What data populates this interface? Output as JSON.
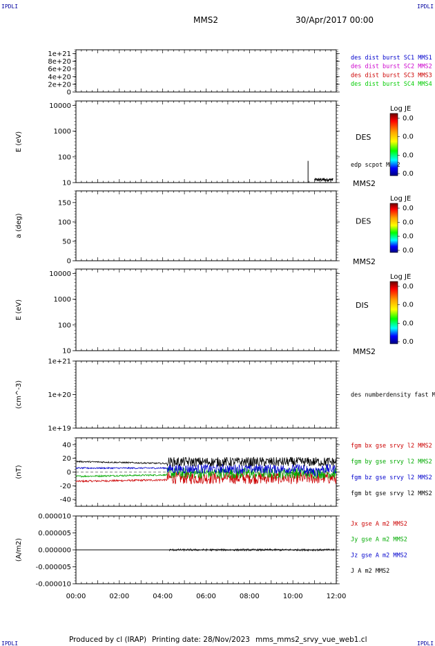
{
  "header": {
    "spacecraft": "MMS2",
    "datetime": "30/Apr/2017 00:00",
    "corner_label": "IPDLI"
  },
  "footer": {
    "produced_by": "Produced by cl (IRAP)",
    "printing_date": "Printing date: 28/Nov/2023",
    "filename": "mms_mms2_srvy_vue_web1.cl"
  },
  "chart_data": [
    {
      "type": "line",
      "panel": "burst",
      "yticks": [
        "1e+21",
        "8e+20",
        "6e+20",
        "4e+20",
        "2e+20",
        "0"
      ],
      "ylim": [
        0,
        1.1e+21
      ],
      "legend": [
        {
          "label": "des dist burst SC1 MMS1",
          "color": "#0000cc"
        },
        {
          "label": "des dist burst SC2 MMS2",
          "color": "#cc00cc"
        },
        {
          "label": "des dist burst SC3 MMS3",
          "color": "#cc0000"
        },
        {
          "label": "des dist burst SC4 MMS4",
          "color": "#00cc00"
        }
      ]
    },
    {
      "type": "heatmap",
      "panel": "des-energy",
      "ylabel": "E (eV)",
      "yscale": "log",
      "yticks": [
        "10000",
        "1000",
        "100",
        "10"
      ],
      "ylim": [
        10,
        15000
      ],
      "species": "DES",
      "overlay": "edp scpot MMS2",
      "spacecraft": "MMS2",
      "colorbar": {
        "title": "Log JE",
        "ticks": [
          "0.0",
          "0.0",
          "0.0",
          "0.0"
        ]
      },
      "scpot_spike": {
        "x": 10.7,
        "y": 70
      }
    },
    {
      "type": "heatmap",
      "panel": "des-pitch",
      "ylabel": "a (deg)",
      "yticks": [
        "150",
        "100",
        "50",
        "0"
      ],
      "ylim": [
        0,
        180
      ],
      "species": "DES",
      "spacecraft": "MMS2",
      "colorbar": {
        "title": "Log JE",
        "ticks": [
          "0.0",
          "0.0",
          "0.0",
          "0.0"
        ]
      }
    },
    {
      "type": "heatmap",
      "panel": "dis-energy",
      "ylabel": "E (eV)",
      "yscale": "log",
      "yticks": [
        "10000",
        "1000",
        "100",
        "10"
      ],
      "ylim": [
        10,
        15000
      ],
      "species": "DIS",
      "spacecraft": "MMS2",
      "colorbar": {
        "title": "Log JE",
        "ticks": [
          "0.0",
          "0.0",
          "0.0",
          "0.0"
        ]
      }
    },
    {
      "type": "line",
      "panel": "density",
      "ylabel": "(cm^-3)",
      "yscale": "log",
      "yticks": [
        "1e+21",
        "1e+20",
        "1e+19"
      ],
      "ylim": [
        1e+19,
        1e+21
      ],
      "legend": [
        {
          "label": "des numberdensity fast M",
          "color": "#000000"
        }
      ]
    },
    {
      "type": "line",
      "panel": "fgm",
      "ylabel": "(nT)",
      "yticks": [
        "40",
        "20",
        "0",
        "-20",
        "-40"
      ],
      "ylim": [
        -50,
        50
      ],
      "legend": [
        {
          "label": "fgm bx gse srvy l2 MMS2",
          "color": "#cc0000"
        },
        {
          "label": "fgm by gse srvy l2 MMS2",
          "color": "#00aa00"
        },
        {
          "label": "fgm bz gse srvy l2 MMS2",
          "color": "#0000cc"
        },
        {
          "label": "fgm bt gse srvy l2 MMS2",
          "color": "#000000"
        }
      ],
      "series_levels": {
        "bt": 15,
        "bz": 6,
        "by": -6,
        "bx": -13
      }
    },
    {
      "type": "line",
      "panel": "current",
      "ylabel": "(A/m2)",
      "yticks": [
        "0.000010",
        "0.000005",
        "0.000000",
        "-0.000005",
        "-0.000010"
      ],
      "ylim": [
        -1e-05,
        1e-05
      ],
      "legend": [
        {
          "label": "Jx gse A m2 MMS2",
          "color": "#cc0000"
        },
        {
          "label": "Jy gse A m2 MMS2",
          "color": "#00aa00"
        },
        {
          "label": "Jz gse A m2 MMS2",
          "color": "#0000cc"
        },
        {
          "label": "J A m2 MMS2",
          "color": "#000000"
        }
      ]
    }
  ],
  "xaxis": {
    "ticks": [
      "00:00",
      "02:00",
      "04:00",
      "06:00",
      "08:00",
      "10:00",
      "12:00"
    ],
    "xlim": [
      0,
      12
    ]
  }
}
